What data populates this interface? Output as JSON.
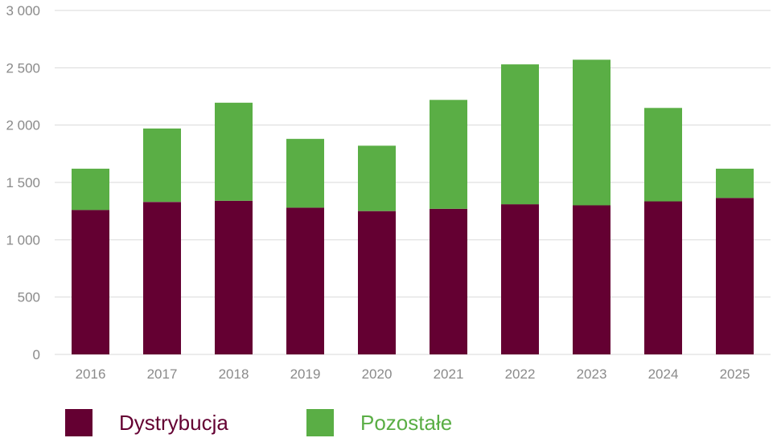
{
  "chart_data": {
    "type": "bar",
    "stacked": true,
    "title": "",
    "xlabel": "",
    "ylabel": "",
    "categories": [
      "2016",
      "2017",
      "2018",
      "2019",
      "2020",
      "2021",
      "2022",
      "2023",
      "2024",
      "2025"
    ],
    "series": [
      {
        "name": "Dystrybucja",
        "color": "#640032",
        "values": [
          1260,
          1330,
          1340,
          1280,
          1250,
          1270,
          1310,
          1300,
          1335,
          1365
        ]
      },
      {
        "name": "Pozostałe",
        "color": "#5aae45",
        "values": [
          360,
          640,
          855,
          600,
          570,
          950,
          1220,
          1270,
          815,
          255
        ]
      }
    ],
    "ylim": [
      0,
      3000
    ],
    "yticks": [
      0,
      500,
      1000,
      1500,
      2000,
      2500,
      3000
    ],
    "ytick_labels": [
      "0",
      "500",
      "1 000",
      "1 500",
      "2 000",
      "2 500",
      "3 000"
    ],
    "grid": true,
    "legend_position": "bottom"
  }
}
